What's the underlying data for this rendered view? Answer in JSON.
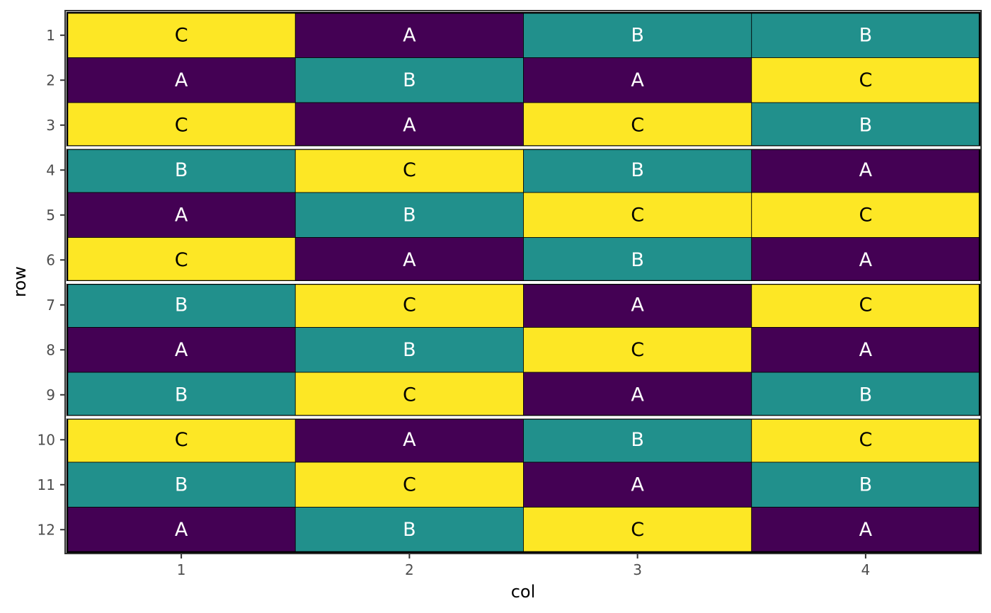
{
  "chart_data": {
    "type": "heatmap",
    "xlabel": "col",
    "ylabel": "row",
    "x_ticks": [
      "1",
      "2",
      "3",
      "4"
    ],
    "y_ticks": [
      "1",
      "2",
      "3",
      "4",
      "5",
      "6",
      "7",
      "8",
      "9",
      "10",
      "11",
      "12"
    ],
    "grid": false,
    "legend": "none",
    "colors": {
      "A": "#440154",
      "B": "#21908C",
      "C": "#FDE725"
    },
    "label_colors": {
      "A": "#ffffff",
      "B": "#ffffff",
      "C": "#000000"
    },
    "blocks": [
      {
        "rows": [
          1,
          3
        ]
      },
      {
        "rows": [
          4,
          6
        ]
      },
      {
        "rows": [
          7,
          9
        ]
      },
      {
        "rows": [
          10,
          12
        ]
      }
    ],
    "cells": [
      [
        "C",
        "A",
        "B",
        "B"
      ],
      [
        "A",
        "B",
        "A",
        "C"
      ],
      [
        "C",
        "A",
        "C",
        "B"
      ],
      [
        "B",
        "C",
        "B",
        "A"
      ],
      [
        "A",
        "B",
        "C",
        "C"
      ],
      [
        "C",
        "A",
        "B",
        "A"
      ],
      [
        "B",
        "C",
        "A",
        "C"
      ],
      [
        "A",
        "B",
        "C",
        "A"
      ],
      [
        "B",
        "C",
        "A",
        "B"
      ],
      [
        "C",
        "A",
        "B",
        "C"
      ],
      [
        "B",
        "C",
        "A",
        "B"
      ],
      [
        "A",
        "B",
        "C",
        "A"
      ]
    ]
  }
}
